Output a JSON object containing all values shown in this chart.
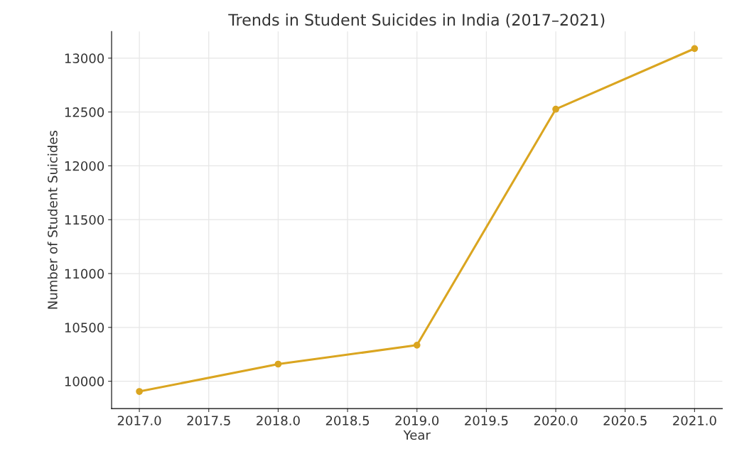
{
  "chart_data": {
    "type": "line",
    "title": "Trends in Student Suicides in India (2017–2021)",
    "xlabel": "Year",
    "ylabel": "Number of Student Suicides",
    "x": [
      2017,
      2018,
      2019,
      2020,
      2021
    ],
    "series": [
      {
        "color": "#daa520",
        "values": [
          9905,
          10159,
          10335,
          12526,
          13089
        ]
      }
    ],
    "xlim": [
      2016.8,
      2021.2
    ],
    "xticks": [
      {
        "value": 2017,
        "label": "2017.0"
      },
      {
        "value": 2017.5,
        "label": "2017.5"
      },
      {
        "value": 2018,
        "label": "2018.0"
      },
      {
        "value": 2018.5,
        "label": "2018.5"
      },
      {
        "value": 2019,
        "label": "2019.0"
      },
      {
        "value": 2019.5,
        "label": "2019.5"
      },
      {
        "value": 2020,
        "label": "2020.0"
      },
      {
        "value": 2020.5,
        "label": "2020.5"
      },
      {
        "value": 2021,
        "label": "2021.0"
      }
    ],
    "ylim": [
      9746,
      13248
    ],
    "yticks": [
      10000,
      10500,
      11000,
      11500,
      12000,
      12500,
      13000
    ],
    "grid": true,
    "marker": "circle",
    "line_style": "solid"
  }
}
